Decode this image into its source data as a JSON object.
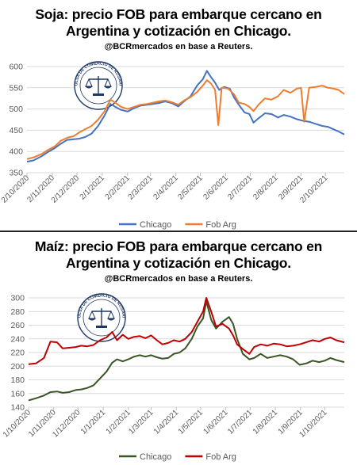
{
  "chart_data": [
    {
      "type": "line",
      "title": "Soja: precio FOB para embarque cercano en Argentina y cotización en Chicago.",
      "title_lines": [
        "Soja: precio FOB para embarque cercano en",
        "Argentina y cotización en Chicago."
      ],
      "subtitle": "@BCRmercados en base a Reuters.",
      "xlabel": "",
      "ylabel": "",
      "ylim": [
        350,
        600
      ],
      "yticks": [
        350,
        400,
        450,
        500,
        550,
        600
      ],
      "xticks": [
        "2/10/2020",
        "2/11/2020",
        "2/12/2020",
        "2/1/2021",
        "2/2/2021",
        "2/3/2021",
        "2/4/2021",
        "2/5/2021",
        "2/6/2021",
        "2/7/2021",
        "2/8/2021",
        "2/9/2021",
        "2/10/2021"
      ],
      "x_range": [
        "2020-10-02",
        "2021-10-25"
      ],
      "grid": true,
      "legend": "bottom",
      "series": [
        {
          "name": "Chicago",
          "color": "#4472C4",
          "points": [
            [
              "2020-10-02",
              376
            ],
            [
              "2020-10-10",
              379
            ],
            [
              "2020-10-20",
              389
            ],
            [
              "2020-10-28",
              399
            ],
            [
              "2020-11-05",
              408
            ],
            [
              "2020-11-12",
              418
            ],
            [
              "2020-11-20",
              427
            ],
            [
              "2020-11-28",
              429
            ],
            [
              "2020-12-05",
              430
            ],
            [
              "2020-12-12",
              434
            ],
            [
              "2020-12-20",
              442
            ],
            [
              "2020-12-28",
              460
            ],
            [
              "2021-01-05",
              485
            ],
            [
              "2021-01-12",
              512
            ],
            [
              "2021-01-18",
              505
            ],
            [
              "2021-01-25",
              498
            ],
            [
              "2021-02-02",
              494
            ],
            [
              "2021-02-10",
              502
            ],
            [
              "2021-02-18",
              508
            ],
            [
              "2021-02-26",
              510
            ],
            [
              "2021-03-05",
              512
            ],
            [
              "2021-03-12",
              514
            ],
            [
              "2021-03-20",
              518
            ],
            [
              "2021-03-28",
              514
            ],
            [
              "2021-04-05",
              506
            ],
            [
              "2021-04-12",
              518
            ],
            [
              "2021-04-20",
              530
            ],
            [
              "2021-04-28",
              555
            ],
            [
              "2021-05-05",
              570
            ],
            [
              "2021-05-10",
              590
            ],
            [
              "2021-05-15",
              575
            ],
            [
              "2021-05-20",
              562
            ],
            [
              "2021-05-25",
              545
            ],
            [
              "2021-05-31",
              552
            ],
            [
              "2021-06-07",
              548
            ],
            [
              "2021-06-12",
              528
            ],
            [
              "2021-06-18",
              510
            ],
            [
              "2021-06-25",
              492
            ],
            [
              "2021-07-01",
              488
            ],
            [
              "2021-07-06",
              468
            ],
            [
              "2021-07-12",
              478
            ],
            [
              "2021-07-20",
              490
            ],
            [
              "2021-07-28",
              488
            ],
            [
              "2021-08-05",
              480
            ],
            [
              "2021-08-12",
              486
            ],
            [
              "2021-08-20",
              482
            ],
            [
              "2021-08-28",
              476
            ],
            [
              "2021-09-05",
              472
            ],
            [
              "2021-09-12",
              470
            ],
            [
              "2021-09-20",
              465
            ],
            [
              "2021-09-28",
              460
            ],
            [
              "2021-10-05",
              458
            ],
            [
              "2021-10-12",
              452
            ],
            [
              "2021-10-18",
              447
            ],
            [
              "2021-10-25",
              440
            ]
          ]
        },
        {
          "name": "Fob Arg",
          "color": "#ED7D31",
          "points": [
            [
              "2020-10-02",
              382
            ],
            [
              "2020-10-10",
              386
            ],
            [
              "2020-10-20",
              394
            ],
            [
              "2020-10-28",
              404
            ],
            [
              "2020-11-05",
              412
            ],
            [
              "2020-11-12",
              425
            ],
            [
              "2020-11-20",
              432
            ],
            [
              "2020-11-28",
              436
            ],
            [
              "2020-12-05",
              445
            ],
            [
              "2020-12-12",
              452
            ],
            [
              "2020-12-20",
              460
            ],
            [
              "2020-12-28",
              475
            ],
            [
              "2021-01-05",
              495
            ],
            [
              "2021-01-12",
              522
            ],
            [
              "2021-01-18",
              515
            ],
            [
              "2021-01-25",
              505
            ],
            [
              "2021-02-02",
              500
            ],
            [
              "2021-02-10",
              505
            ],
            [
              "2021-02-18",
              510
            ],
            [
              "2021-02-26",
              512
            ],
            [
              "2021-03-05",
              515
            ],
            [
              "2021-03-12",
              518
            ],
            [
              "2021-03-20",
              520
            ],
            [
              "2021-03-28",
              516
            ],
            [
              "2021-04-05",
              510
            ],
            [
              "2021-04-12",
              520
            ],
            [
              "2021-04-20",
              528
            ],
            [
              "2021-04-28",
              540
            ],
            [
              "2021-05-05",
              555
            ],
            [
              "2021-05-10",
              568
            ],
            [
              "2021-05-15",
              560
            ],
            [
              "2021-05-20",
              545
            ],
            [
              "2021-05-24",
              462
            ],
            [
              "2021-05-28",
              550
            ],
            [
              "2021-06-05",
              548
            ],
            [
              "2021-06-12",
              535
            ],
            [
              "2021-06-18",
              515
            ],
            [
              "2021-06-25",
              512
            ],
            [
              "2021-07-01",
              505
            ],
            [
              "2021-07-06",
              495
            ],
            [
              "2021-07-12",
              510
            ],
            [
              "2021-07-20",
              525
            ],
            [
              "2021-07-28",
              522
            ],
            [
              "2021-08-05",
              530
            ],
            [
              "2021-08-12",
              545
            ],
            [
              "2021-08-20",
              538
            ],
            [
              "2021-08-28",
              548
            ],
            [
              "2021-09-02",
              550
            ],
            [
              "2021-09-06",
              470
            ],
            [
              "2021-09-12",
              550
            ],
            [
              "2021-09-20",
              552
            ],
            [
              "2021-09-28",
              555
            ],
            [
              "2021-10-05",
              550
            ],
            [
              "2021-10-12",
              548
            ],
            [
              "2021-10-18",
              545
            ],
            [
              "2021-10-25",
              535
            ]
          ]
        }
      ]
    },
    {
      "type": "line",
      "title": "Maíz: precio FOB para embarque cercano en Argentina y cotización en Chicago.",
      "title_lines": [
        "Maíz: precio FOB para embarque cercano en",
        "Argentina y cotización en Chicago."
      ],
      "subtitle": "@BCRmercados en base a Reuters.",
      "xlabel": "",
      "ylabel": "",
      "ylim": [
        140,
        300
      ],
      "yticks": [
        140,
        160,
        180,
        200,
        220,
        240,
        260,
        280,
        300
      ],
      "xticks": [
        "1/10/2020",
        "1/11/2020",
        "1/12/2020",
        "1/1/2021",
        "1/2/2021",
        "1/3/2021",
        "1/4/2021",
        "1/5/2021",
        "1/6/2021",
        "1/7/2021",
        "1/8/2021",
        "1/9/2021",
        "1/10/2021"
      ],
      "x_range": [
        "2020-10-01",
        "2021-10-25"
      ],
      "grid": true,
      "legend": "bottom",
      "series": [
        {
          "name": "Chicago",
          "color": "#375623",
          "points": [
            [
              "2020-10-01",
              150
            ],
            [
              "2020-10-10",
              153
            ],
            [
              "2020-10-20",
              157
            ],
            [
              "2020-10-28",
              162
            ],
            [
              "2020-11-05",
              163
            ],
            [
              "2020-11-12",
              161
            ],
            [
              "2020-11-20",
              162
            ],
            [
              "2020-11-28",
              165
            ],
            [
              "2020-12-05",
              166
            ],
            [
              "2020-12-12",
              168
            ],
            [
              "2020-12-20",
              172
            ],
            [
              "2020-12-28",
              182
            ],
            [
              "2021-01-05",
              192
            ],
            [
              "2021-01-12",
              205
            ],
            [
              "2021-01-18",
              210
            ],
            [
              "2021-01-25",
              207
            ],
            [
              "2021-02-01",
              210
            ],
            [
              "2021-02-08",
              214
            ],
            [
              "2021-02-15",
              216
            ],
            [
              "2021-02-22",
              214
            ],
            [
              "2021-03-01",
              216
            ],
            [
              "2021-03-08",
              213
            ],
            [
              "2021-03-15",
              211
            ],
            [
              "2021-03-22",
              212
            ],
            [
              "2021-03-29",
              218
            ],
            [
              "2021-04-05",
              220
            ],
            [
              "2021-04-12",
              226
            ],
            [
              "2021-04-20",
              240
            ],
            [
              "2021-04-27",
              258
            ],
            [
              "2021-05-04",
              270
            ],
            [
              "2021-05-08",
              295
            ],
            [
              "2021-05-14",
              268
            ],
            [
              "2021-05-20",
              255
            ],
            [
              "2021-05-28",
              265
            ],
            [
              "2021-06-05",
              272
            ],
            [
              "2021-06-10",
              262
            ],
            [
              "2021-06-15",
              240
            ],
            [
              "2021-06-22",
              218
            ],
            [
              "2021-06-30",
              210
            ],
            [
              "2021-07-06",
              212
            ],
            [
              "2021-07-14",
              218
            ],
            [
              "2021-07-22",
              212
            ],
            [
              "2021-07-30",
              214
            ],
            [
              "2021-08-07",
              216
            ],
            [
              "2021-08-15",
              214
            ],
            [
              "2021-08-23",
              210
            ],
            [
              "2021-08-31",
              202
            ],
            [
              "2021-09-08",
              204
            ],
            [
              "2021-09-16",
              208
            ],
            [
              "2021-09-24",
              206
            ],
            [
              "2021-10-01",
              208
            ],
            [
              "2021-10-08",
              212
            ],
            [
              "2021-10-15",
              209
            ],
            [
              "2021-10-25",
              206
            ]
          ]
        },
        {
          "name": "Fob Arg",
          "color": "#C00000",
          "points": [
            [
              "2020-10-01",
              203
            ],
            [
              "2020-10-10",
              204
            ],
            [
              "2020-10-20",
              212
            ],
            [
              "2020-10-28",
              236
            ],
            [
              "2020-11-05",
              235
            ],
            [
              "2020-11-12",
              226
            ],
            [
              "2020-11-20",
              227
            ],
            [
              "2020-11-28",
              228
            ],
            [
              "2020-12-05",
              230
            ],
            [
              "2020-12-12",
              229
            ],
            [
              "2020-12-20",
              231
            ],
            [
              "2020-12-28",
              238
            ],
            [
              "2021-01-05",
              242
            ],
            [
              "2021-01-12",
              250
            ],
            [
              "2021-01-18",
              238
            ],
            [
              "2021-01-25",
              246
            ],
            [
              "2021-02-01",
              240
            ],
            [
              "2021-02-08",
              243
            ],
            [
              "2021-02-15",
              244
            ],
            [
              "2021-02-22",
              241
            ],
            [
              "2021-03-01",
              245
            ],
            [
              "2021-03-08",
              238
            ],
            [
              "2021-03-15",
              232
            ],
            [
              "2021-03-22",
              234
            ],
            [
              "2021-03-29",
              238
            ],
            [
              "2021-04-05",
              236
            ],
            [
              "2021-04-12",
              240
            ],
            [
              "2021-04-20",
              250
            ],
            [
              "2021-04-27",
              265
            ],
            [
              "2021-05-04",
              280
            ],
            [
              "2021-05-08",
              300
            ],
            [
              "2021-05-14",
              280
            ],
            [
              "2021-05-20",
              258
            ],
            [
              "2021-05-28",
              262
            ],
            [
              "2021-06-05",
              255
            ],
            [
              "2021-06-10",
              245
            ],
            [
              "2021-06-15",
              232
            ],
            [
              "2021-06-22",
              225
            ],
            [
              "2021-06-30",
              218
            ],
            [
              "2021-07-06",
              228
            ],
            [
              "2021-07-14",
              232
            ],
            [
              "2021-07-22",
              230
            ],
            [
              "2021-07-30",
              233
            ],
            [
              "2021-08-07",
              232
            ],
            [
              "2021-08-15",
              229
            ],
            [
              "2021-08-23",
              230
            ],
            [
              "2021-08-31",
              232
            ],
            [
              "2021-09-08",
              235
            ],
            [
              "2021-09-16",
              238
            ],
            [
              "2021-09-24",
              236
            ],
            [
              "2021-10-01",
              240
            ],
            [
              "2021-10-08",
              242
            ],
            [
              "2021-10-15",
              238
            ],
            [
              "2021-10-25",
              235
            ]
          ]
        }
      ]
    }
  ],
  "colors": {
    "grid": "#D9D9D9",
    "axis_text": "#595959",
    "border": "#BFBFBF"
  },
  "logo": {
    "icon": "bolsa-de-comercio-de-rosario-seal",
    "text": "BOLSA DE COMERCIO DE ROSARIO"
  }
}
